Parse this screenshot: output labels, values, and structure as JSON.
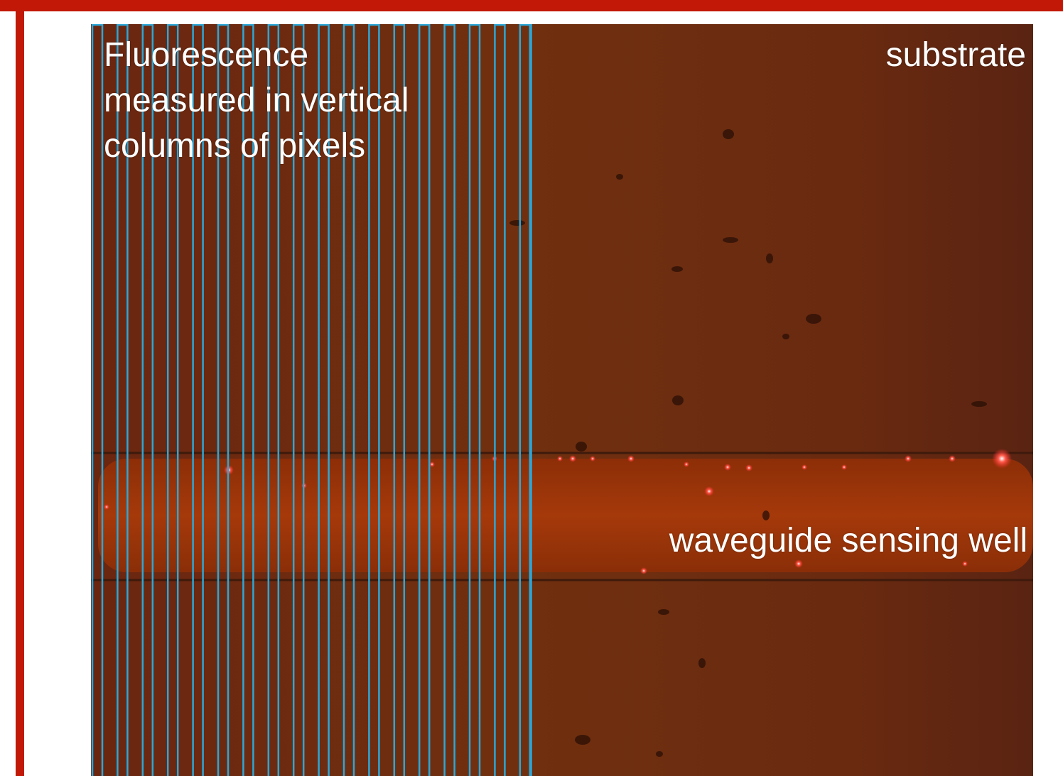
{
  "colors": {
    "frame": "#c21807",
    "substrate": "#6e2a10",
    "waveguide": "#9a3308",
    "column_outline": "#2aa7d8",
    "label_text": "#ffffff",
    "fluorescent_spot": "#ff2a2a"
  },
  "labels": {
    "fluorescence": "Fluorescence measured in vertical columns of pixels",
    "substrate": "substrate",
    "waveguide": "waveguide sensing well"
  },
  "measurement_columns": {
    "count": 18
  }
}
